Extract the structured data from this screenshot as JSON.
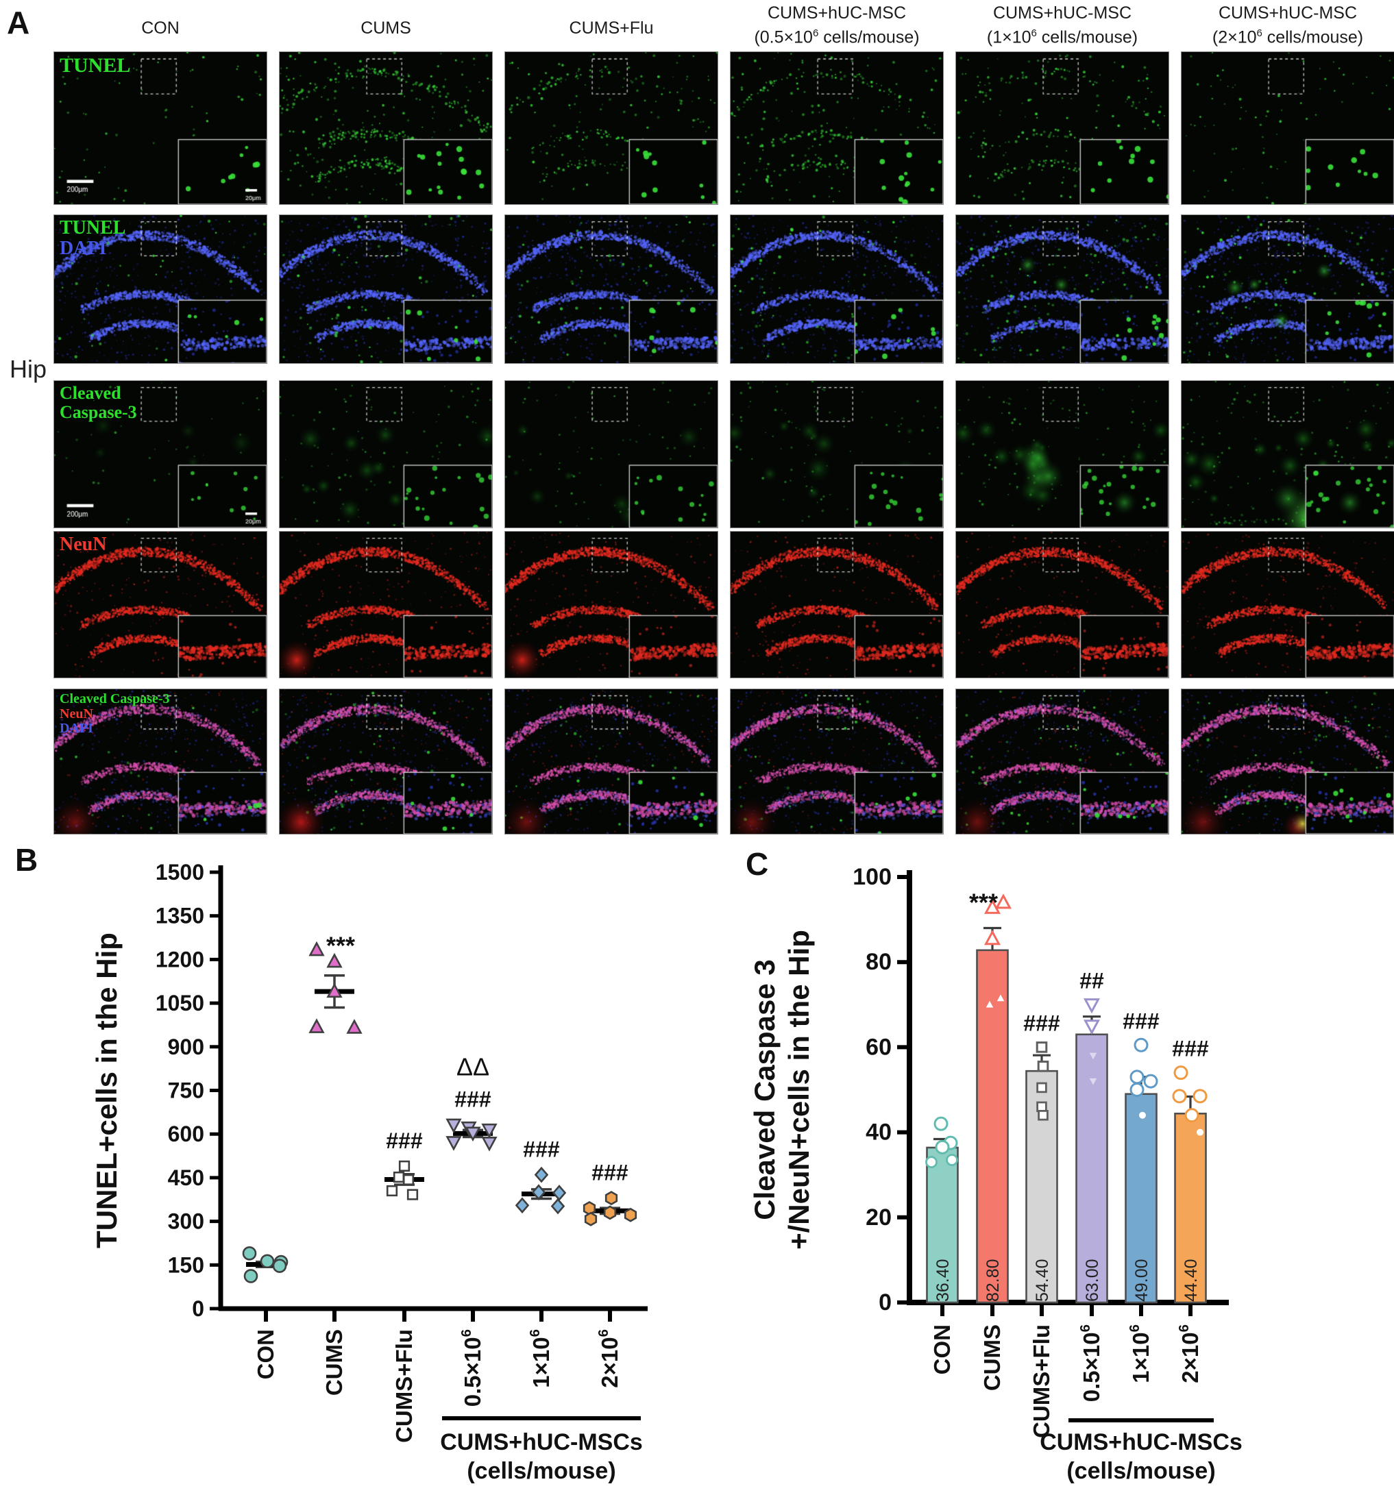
{
  "figure": {
    "panel_a_label": "A",
    "panel_b_label": "B",
    "panel_c_label": "C"
  },
  "panelA": {
    "hip_label": "Hip",
    "scale_bar_main": "200μm",
    "scale_bar_inset": "20μm",
    "columns": [
      {
        "name": "con",
        "lines": [
          [
            {
              "t": "CON"
            }
          ]
        ]
      },
      {
        "name": "cums",
        "lines": [
          [
            {
              "t": "CUMS"
            }
          ]
        ]
      },
      {
        "name": "cums-flu",
        "lines": [
          [
            {
              "t": "CUMS+Flu"
            }
          ]
        ]
      },
      {
        "name": "cums-hucmsc-05",
        "lines": [
          [
            {
              "t": "CUMS+hUC-MSC"
            }
          ],
          [
            {
              "t": "(0.5×10"
            },
            {
              "t": "6",
              "sup": true
            },
            {
              "t": " cells/mouse)"
            }
          ]
        ]
      },
      {
        "name": "cums-hucmsc-1",
        "lines": [
          [
            {
              "t": "CUMS+hUC-MSC"
            }
          ],
          [
            {
              "t": "(1×10"
            },
            {
              "t": "6",
              "sup": true
            },
            {
              "t": " cells/mouse)"
            }
          ]
        ]
      },
      {
        "name": "cums-hucmsc-2",
        "lines": [
          [
            {
              "t": "CUMS+hUC-MSC"
            }
          ],
          [
            {
              "t": "(2×10"
            },
            {
              "t": "6",
              "sup": true
            },
            {
              "t": " cells/mouse)"
            }
          ]
        ]
      }
    ],
    "rows": [
      {
        "name": "tunel",
        "type": "tunel",
        "labels": [
          {
            "text": "TUNEL",
            "color": "#2ee02e"
          }
        ],
        "font": 30,
        "green": [
          0.25,
          1.0,
          0.5,
          0.7,
          0.5,
          0.35
        ],
        "scalebar": true
      },
      {
        "name": "tunel-dapi",
        "type": "tunel_dapi",
        "labels": [
          {
            "text": "TUNEL",
            "color": "#2ee02e"
          },
          {
            "text": "DAPI",
            "color": "#4556e8"
          }
        ],
        "font": 28,
        "green": [
          0.15,
          0.5,
          0.35,
          0.5,
          0.9,
          0.85
        ],
        "scalebar": false
      },
      {
        "name": "cleaved-caspase-3",
        "type": "cc3",
        "labels": [
          {
            "text": "Cleaved",
            "color": "#2ee02e"
          },
          {
            "text": "Caspase-3",
            "color": "#2ee02e"
          }
        ],
        "font": 26,
        "green": [
          0.2,
          0.75,
          0.5,
          0.65,
          0.9,
          1.0
        ],
        "scalebar": true
      },
      {
        "name": "neun",
        "type": "neun",
        "labels": [
          {
            "text": "NeuN",
            "color": "#f23b30"
          }
        ],
        "font": 28,
        "green": [
          0,
          0,
          0,
          0,
          0,
          0
        ],
        "scalebar": false
      },
      {
        "name": "merge",
        "type": "merge",
        "labels": [
          {
            "text": "Cleaved Caspase-3",
            "color": "#2ee02e"
          },
          {
            "text": "NeuN",
            "color": "#f23b30"
          },
          {
            "text": "DAPI",
            "color": "#4556e8"
          }
        ],
        "font": 20,
        "green": [
          0.2,
          0.6,
          0.4,
          0.5,
          0.7,
          0.9
        ],
        "scalebar": false
      }
    ]
  },
  "chart_data": [
    {
      "id": "B",
      "type": "scatter",
      "title": "",
      "xlabel": "",
      "ylabel": "TUNEL+cells in the Hip",
      "ylim": [
        0,
        1500
      ],
      "ytick_step": 150,
      "grid": false,
      "legend": "none",
      "categories": [
        "CON",
        "CUMS",
        "CUMS+Flu",
        "0.5×10^6",
        "1×10^6",
        "2×10^6"
      ],
      "groups": [
        {
          "label": [
            {
              "t": "CON"
            }
          ],
          "marker": "circle",
          "color": "#7fccc1",
          "mean": 152,
          "sem": 9,
          "sig": [],
          "points": [
            [
              -24,
              190
            ],
            [
              2,
              163
            ],
            [
              22,
              160
            ],
            [
              -22,
              112
            ],
            [
              20,
              147
            ]
          ]
        },
        {
          "label": [
            {
              "t": "CUMS"
            }
          ],
          "marker": "triangle-up",
          "color": "#de6ec8",
          "mean": 1090,
          "sem": 55,
          "sig": [
            "***"
          ],
          "sig_side": "right",
          "points": [
            [
              -26,
              1233
            ],
            [
              0,
              1193
            ],
            [
              0,
              1090
            ],
            [
              -26,
              968
            ],
            [
              29,
              966
            ]
          ]
        },
        {
          "label": [
            {
              "t": "CUMS+Flu"
            }
          ],
          "marker": "square-open",
          "color": "#8a8a8a",
          "mean": 444,
          "sem": 18,
          "sig": [
            "###"
          ],
          "points": [
            [
              0,
              490
            ],
            [
              -8,
              452
            ],
            [
              6,
              443
            ],
            [
              -18,
              405
            ],
            [
              12,
              392
            ]
          ]
        },
        {
          "label": [
            {
              "t": "0.5×10"
            },
            {
              "t": "6",
              "sup": true
            }
          ],
          "marker": "triangle-down",
          "color": "#b7b0dc",
          "mean": 602,
          "sem": 12,
          "sig": [
            "###",
            "ΔΔ"
          ],
          "points": [
            [
              -28,
              632
            ],
            [
              -6,
              622
            ],
            [
              24,
              615
            ],
            [
              0,
              604
            ],
            [
              -28,
              572
            ],
            [
              24,
              570
            ]
          ]
        },
        {
          "label": [
            {
              "t": "1×10"
            },
            {
              "t": "6",
              "sup": true
            }
          ],
          "marker": "diamond",
          "color": "#7fb2d8",
          "mean": 394,
          "sem": 16,
          "sig": [
            "###"
          ],
          "points": [
            [
              0,
              460
            ],
            [
              -4,
              400
            ],
            [
              26,
              398
            ],
            [
              -28,
              355
            ],
            [
              24,
              352
            ]
          ]
        },
        {
          "label": [
            {
              "t": "2×10"
            },
            {
              "t": "6",
              "sup": true
            }
          ],
          "marker": "hexagon",
          "color": "#f0a150",
          "mean": 336,
          "sem": 10,
          "sig": [
            "###"
          ],
          "points": [
            [
              2,
              380
            ],
            [
              -30,
              345
            ],
            [
              0,
              330
            ],
            [
              30,
              322
            ],
            [
              -28,
              308
            ]
          ]
        }
      ],
      "bracket": {
        "from": 3,
        "to": 5,
        "line1": "CUMS+hUC-MSCs",
        "line2": "(cells/mouse)"
      }
    },
    {
      "id": "C",
      "type": "bar",
      "title": "",
      "xlabel": "",
      "ylabel_line1": "Cleaved Caspase 3",
      "ylabel_line2": "+/NeuN+cells in the Hip",
      "ylim": [
        0,
        100
      ],
      "ytick_step": 20,
      "grid": false,
      "legend": "none",
      "categories": [
        "CON",
        "CUMS",
        "CUMS+Flu",
        "0.5×10^6",
        "1×10^6",
        "2×10^6"
      ],
      "values": [
        36.4,
        82.8,
        54.4,
        63.0,
        49.0,
        44.4
      ],
      "groups": [
        {
          "label": [
            {
              "t": "CON"
            }
          ],
          "value": 36.4,
          "value_label": "36.40",
          "sem": 2.0,
          "color": "#8ed0c4",
          "marker": "circle",
          "mcolor": "#5fbcae",
          "inside": "open",
          "sig": [],
          "points": [
            [
              -2,
              42
            ],
            [
              12,
              37.5
            ],
            [
              0,
              36.5
            ],
            [
              14,
              33.5
            ],
            [
              -16,
              33
            ]
          ]
        },
        {
          "label": [
            {
              "t": "CUMS"
            }
          ],
          "value": 82.8,
          "value_label": "82.80",
          "sem": 5.2,
          "color": "#f4796c",
          "marker": "triangle-up",
          "mcolor": "#f4695b",
          "inside": "white",
          "sig": [
            "***"
          ],
          "sig_side": "right",
          "points": [
            [
              0,
              92.8
            ],
            [
              16,
              94
            ],
            [
              0,
              85.5
            ],
            [
              -4,
              70
            ],
            [
              12,
              71.5
            ]
          ]
        },
        {
          "label": [
            {
              "t": "CUMS+Flu"
            }
          ],
          "value": 54.4,
          "value_label": "54.40",
          "sem": 3.7,
          "color": "#d5d5d5",
          "marker": "square-open",
          "mcolor": "#5f5f5f",
          "inside": "open",
          "sig": [
            "###"
          ],
          "points": [
            [
              0,
              60
            ],
            [
              2,
              55.5
            ],
            [
              0,
              50.5
            ],
            [
              0,
              46
            ],
            [
              2,
              44
            ]
          ]
        },
        {
          "label": [
            {
              "t": "0.5×10"
            },
            {
              "t": "6",
              "sup": true
            }
          ],
          "value": 63.0,
          "value_label": "63.00",
          "sem": 4.2,
          "color": "#b7aedb",
          "marker": "triangle-down",
          "mcolor": "#9b90cc",
          "inside": "tint",
          "sig": [
            "##"
          ],
          "points": [
            [
              0,
              70
            ],
            [
              0,
              65
            ],
            [
              2,
              58
            ],
            [
              2,
              52
            ]
          ]
        },
        {
          "label": [
            {
              "t": "1×10"
            },
            {
              "t": "6",
              "sup": true
            }
          ],
          "value": 49.0,
          "value_label": "49.00",
          "sem": 4.0,
          "color": "#74a8ce",
          "marker": "circle",
          "mcolor": "#5d9ac6",
          "inside": "white",
          "sig": [
            "###"
          ],
          "points": [
            [
              0,
              60.5
            ],
            [
              -6,
              53
            ],
            [
              14,
              52
            ],
            [
              -6,
              50
            ],
            [
              2,
              44
            ]
          ]
        },
        {
          "label": [
            {
              "t": "2×10"
            },
            {
              "t": "6",
              "sup": true
            }
          ],
          "value": 44.4,
          "value_label": "44.40",
          "sem": 4.0,
          "color": "#f5a557",
          "marker": "circle",
          "mcolor": "#ef9a40",
          "inside": "white",
          "sig": [
            "###"
          ],
          "points": [
            [
              -14,
              54
            ],
            [
              -16,
              48.5
            ],
            [
              14,
              48.5
            ],
            [
              2,
              44
            ],
            [
              14,
              40
            ]
          ]
        }
      ],
      "bracket": {
        "from": 3,
        "to": 5,
        "line1": "CUMS+hUC-MSCs",
        "line2": "(cells/mouse)"
      }
    }
  ]
}
